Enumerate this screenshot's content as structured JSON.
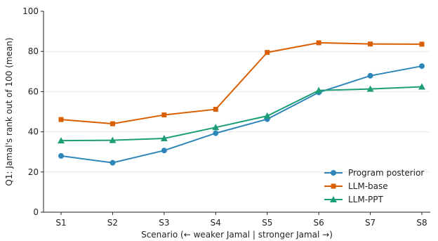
{
  "chart_data": {
    "type": "line",
    "categories": [
      "S1",
      "S2",
      "S3",
      "S4",
      "S5",
      "S6",
      "S7",
      "S8"
    ],
    "series": [
      {
        "name": "Program posterior",
        "color": "#2e86b8",
        "marker": "circle",
        "values": [
          28.0,
          24.6,
          30.7,
          39.3,
          46.3,
          59.6,
          67.9,
          72.7
        ]
      },
      {
        "name": "LLM-base",
        "color": "#d95f02",
        "marker": "square",
        "values": [
          46.1,
          44.0,
          48.4,
          51.2,
          79.5,
          84.3,
          83.7,
          83.6
        ]
      },
      {
        "name": "LLM-PPT",
        "color": "#1b9e77",
        "marker": "triangle",
        "values": [
          35.6,
          35.8,
          36.7,
          42.2,
          47.9,
          60.6,
          61.3,
          62.4
        ]
      }
    ],
    "xlabel": "Scenario  (←  weaker Jamal   |   stronger Jamal  →)",
    "ylabel": "Q1: Jamal's rank out of 100  (mean)",
    "ylim": [
      0,
      100
    ],
    "yticks": [
      0,
      20,
      40,
      60,
      80,
      100
    ],
    "grid": "horizontal",
    "legend_position": "lower-right"
  }
}
